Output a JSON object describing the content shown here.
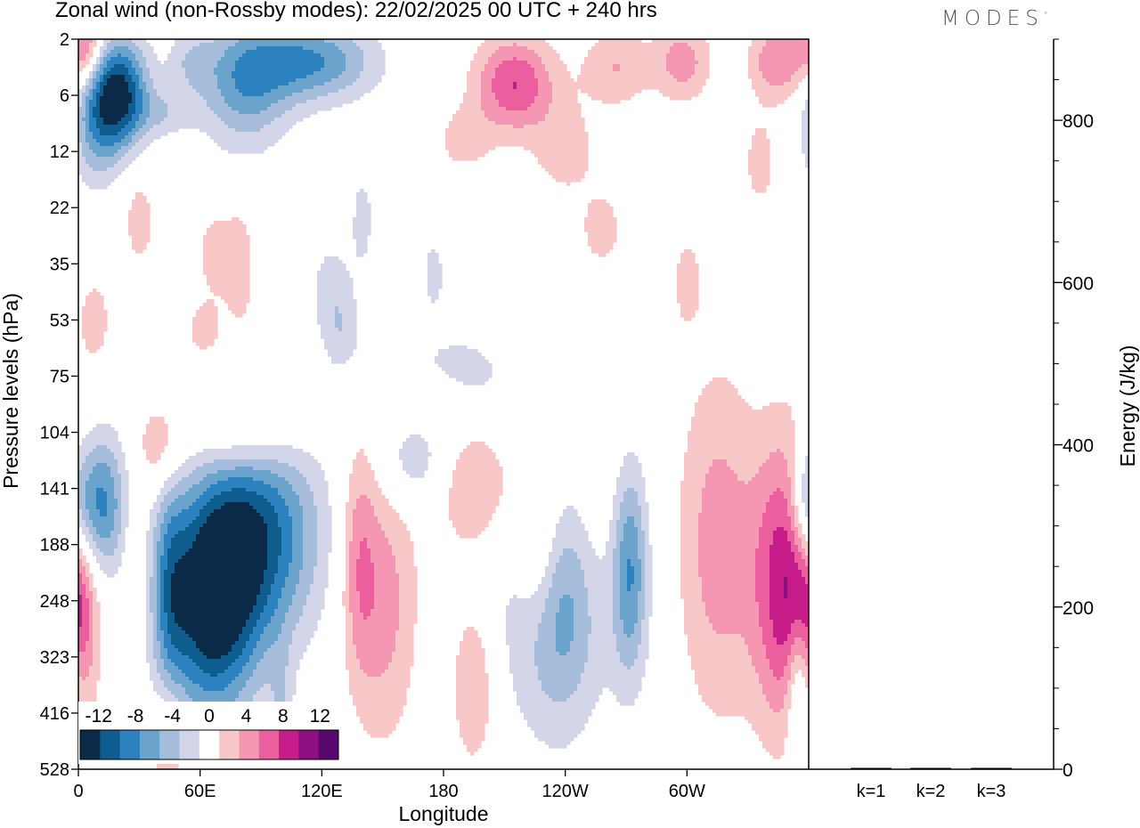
{
  "header": {
    "title": "Zonal wind (non-Rossby modes):  22/02/2025  00 UTC  + 240 hrs",
    "logo": "MODES",
    "logo_mark": "°"
  },
  "chart_data": [
    {
      "type": "heatmap",
      "title": "Zonal wind (non-Rossby modes):  22/02/2025  00 UTC  + 240 hrs",
      "xlabel": "Longitude",
      "ylabel": "Pressure levels (hPa)",
      "x_ticks": [
        "0",
        "60E",
        "120E",
        "180",
        "120W",
        "60W"
      ],
      "x_tick_degrees": [
        0,
        60,
        120,
        180,
        240,
        300
      ],
      "xlim": [
        0,
        360
      ],
      "y_levels": [
        "2",
        "6",
        "12",
        "22",
        "35",
        "53",
        "75",
        "104",
        "141",
        "188",
        "248",
        "323",
        "416",
        "528"
      ],
      "y_scale": "model levels",
      "colorbar": {
        "labels": [
          "-12",
          "-8",
          "-4",
          "0",
          "4",
          "8",
          "12"
        ],
        "label_values": [
          -12,
          -8,
          -4,
          0,
          4,
          8,
          12
        ],
        "bins": [
          -14,
          -12,
          -10,
          -8,
          -6,
          -4,
          -2,
          2,
          4,
          6,
          8,
          10,
          12,
          14
        ],
        "colors": [
          "#0a2a48",
          "#0f5c8e",
          "#2b82be",
          "#6aa3cc",
          "#a6bedc",
          "#d3d6e9",
          "#ffffff",
          "#f8c7c7",
          "#f597b2",
          "#ec5f9f",
          "#c61c8a",
          "#8e0f80",
          "#56086b"
        ],
        "placement": "bottom-left"
      },
      "blobs": [
        {
          "lon": 4,
          "lev": 0.1,
          "dlon": 6,
          "dlev": 0.5,
          "val": 7
        },
        {
          "lon": 20,
          "lev": 1.0,
          "dlon": 10,
          "dlev": 0.7,
          "val": -13
        },
        {
          "lon": 8,
          "lev": 1.5,
          "dlon": 8,
          "dlev": 0.8,
          "val": -5
        },
        {
          "lon": 42,
          "lev": 1.3,
          "dlon": 10,
          "dlev": 0.3,
          "val": -3
        },
        {
          "lon": 82,
          "lev": 0.8,
          "dlon": 16,
          "dlev": 0.8,
          "val": -7
        },
        {
          "lon": 115,
          "lev": 0.4,
          "dlon": 22,
          "dlev": 0.5,
          "val": -8
        },
        {
          "lon": 55,
          "lev": 0.4,
          "dlon": 8,
          "dlev": 0.4,
          "val": -3
        },
        {
          "lon": 215,
          "lev": 0.8,
          "dlon": 14,
          "dlev": 0.6,
          "val": 8
        },
        {
          "lon": 265,
          "lev": 0.5,
          "dlon": 12,
          "dlev": 0.5,
          "val": 4
        },
        {
          "lon": 298,
          "lev": 0.4,
          "dlon": 10,
          "dlev": 0.5,
          "val": 5
        },
        {
          "lon": 345,
          "lev": 0.4,
          "dlon": 10,
          "dlev": 0.5,
          "val": 6
        },
        {
          "lon": 240,
          "lev": 2.0,
          "dlon": 12,
          "dlev": 0.6,
          "val": 3
        },
        {
          "lon": 190,
          "lev": 1.8,
          "dlon": 10,
          "dlev": 0.4,
          "val": 3
        },
        {
          "lon": 30,
          "lev": 3.2,
          "dlon": 6,
          "dlev": 0.7,
          "val": 3
        },
        {
          "lon": 68,
          "lev": 3.8,
          "dlon": 8,
          "dlev": 0.6,
          "val": 3
        },
        {
          "lon": 80,
          "lev": 4.2,
          "dlon": 5,
          "dlev": 0.8,
          "val": 3
        },
        {
          "lon": 140,
          "lev": 3.2,
          "dlon": 4,
          "dlev": 0.6,
          "val": -3
        },
        {
          "lon": 258,
          "lev": 3.4,
          "dlon": 8,
          "dlev": 0.5,
          "val": 3
        },
        {
          "lon": 300,
          "lev": 4.3,
          "dlon": 5,
          "dlev": 0.6,
          "val": 3
        },
        {
          "lon": 130,
          "lev": 5.3,
          "dlon": 7,
          "dlev": 0.5,
          "val": -3
        },
        {
          "lon": 8,
          "lev": 5.0,
          "dlon": 6,
          "dlev": 0.6,
          "val": 3
        },
        {
          "lon": 62,
          "lev": 5.2,
          "dlon": 7,
          "dlev": 0.4,
          "val": 3
        },
        {
          "lon": 185,
          "lev": 6.0,
          "dlon": 18,
          "dlev": 0.5,
          "val": -4
        },
        {
          "lon": 175,
          "lev": 6.3,
          "dlon": 14,
          "dlev": 0.4,
          "val": 3
        },
        {
          "lon": 82,
          "lev": 7.0,
          "dlon": 20,
          "dlev": 0.6,
          "val": 5
        },
        {
          "lon": 40,
          "lev": 7.3,
          "dlon": 8,
          "dlev": 0.6,
          "val": 4
        },
        {
          "lon": 165,
          "lev": 7.5,
          "dlon": 12,
          "dlev": 0.6,
          "val": -4
        },
        {
          "lon": 195,
          "lev": 8.0,
          "dlon": 14,
          "dlev": 0.8,
          "val": 4
        },
        {
          "lon": 10,
          "lev": 8.3,
          "dlon": 9,
          "dlev": 0.9,
          "val": -10
        },
        {
          "lon": 87,
          "lev": 8.8,
          "dlon": 22,
          "dlev": 1.4,
          "val": -11
        },
        {
          "lon": 65,
          "lev": 10.2,
          "dlon": 16,
          "dlev": 1.4,
          "val": -12
        },
        {
          "lon": 45,
          "lev": 9.8,
          "dlon": 6,
          "dlev": 1.5,
          "val": -5
        },
        {
          "lon": 150,
          "lev": 10.0,
          "dlon": 12,
          "dlev": 1.8,
          "val": 5
        },
        {
          "lon": 138,
          "lev": 9.2,
          "dlon": 6,
          "dlev": 1.4,
          "val": 4
        },
        {
          "lon": 240,
          "lev": 10.2,
          "dlon": 20,
          "dlev": 1.5,
          "val": -8
        },
        {
          "lon": 226,
          "lev": 9.0,
          "dlon": 8,
          "dlev": 1.2,
          "val": 5
        },
        {
          "lon": 255,
          "lev": 9.6,
          "dlon": 10,
          "dlev": 1.8,
          "val": 3
        },
        {
          "lon": 272,
          "lev": 9.4,
          "dlon": 6,
          "dlev": 1.3,
          "val": -7
        },
        {
          "lon": 315,
          "lev": 9.0,
          "dlon": 14,
          "dlev": 2.2,
          "val": 5
        },
        {
          "lon": 350,
          "lev": 9.7,
          "dlon": 12,
          "dlev": 1.8,
          "val": 10
        },
        {
          "lon": 358,
          "lev": 8.3,
          "dlon": 5,
          "dlev": 0.8,
          "val": -5
        },
        {
          "lon": 195,
          "lev": 11.5,
          "dlon": 8,
          "dlev": 1.1,
          "val": 4
        },
        {
          "lon": 0,
          "lev": 10.0,
          "dlon": 6,
          "dlev": 1.0,
          "val": 4
        },
        {
          "lon": 45,
          "lev": 12.8,
          "dlon": 6,
          "dlev": 0.9,
          "val": 5
        },
        {
          "lon": 355,
          "lev": 11.6,
          "dlon": 4,
          "dlev": 1.1,
          "val": -6
        },
        {
          "lon": 28,
          "lev": 9.6,
          "dlon": 4,
          "dlev": 0.9,
          "val": 3
        },
        {
          "lon": 100,
          "lev": 12.0,
          "dlon": 4,
          "dlev": 0.8,
          "val": -3
        },
        {
          "lon": 125,
          "lev": 4.4,
          "dlon": 8,
          "dlev": 0.6,
          "val": -3
        },
        {
          "lon": 175,
          "lev": 4.2,
          "dlon": 4,
          "dlev": 0.5,
          "val": -3
        },
        {
          "lon": 336,
          "lev": 2.2,
          "dlon": 6,
          "dlev": 0.6,
          "val": 3
        }
      ]
    },
    {
      "type": "bar",
      "categories": [
        "k=1",
        "k=2",
        "k=3"
      ],
      "values": [
        0.4,
        0.5,
        0.4
      ],
      "ylabel": "Energy (J/kg)",
      "ylim": [
        0,
        900
      ],
      "y_major_ticks": [
        0,
        200,
        400,
        600,
        800
      ],
      "y_minor_step": 50,
      "y_axis_position": "right"
    }
  ]
}
